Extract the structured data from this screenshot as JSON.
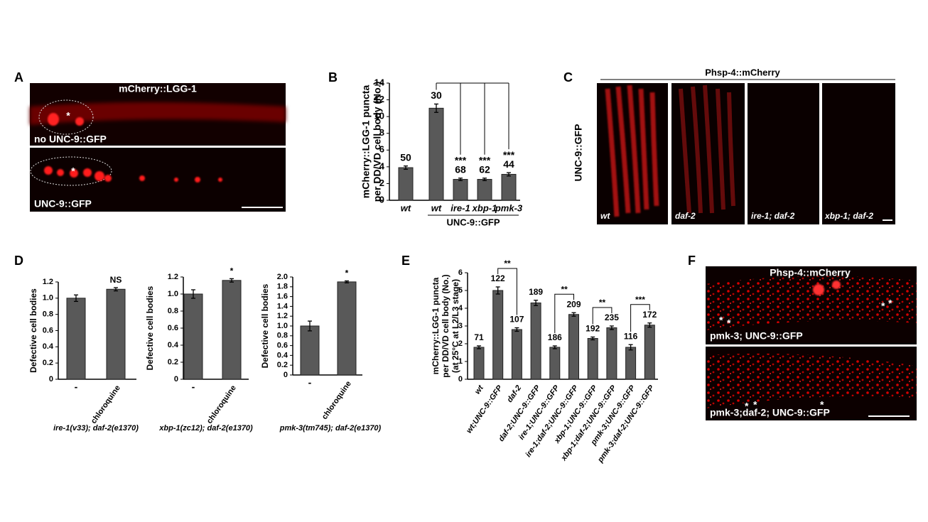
{
  "panels": {
    "A": {
      "letter": "A",
      "title": "mCherry::LGG-1",
      "top_label": "no UNC-9::GFP",
      "bottom_label": "UNC-9::GFP",
      "marker": "*"
    },
    "C": {
      "letter": "C",
      "title": "Phsp-4::mCherry",
      "side_label": "UNC-9::GFP",
      "image_labels": [
        "wt",
        "daf-2",
        "ire-1; daf-2",
        "xbp-1; daf-2"
      ]
    },
    "F": {
      "letter": "F",
      "title": "Phsp-4::mCherry",
      "top_label": "pmk-3; UNC-9::GFP",
      "bottom_label": "pmk-3;daf-2; UNC-9::GFP",
      "marker": "*"
    }
  },
  "chart_data": [
    {
      "type": "bar",
      "panel": "B",
      "y_label": [
        "mCherry::LGG-1 puncta",
        "per DD/VD cell body (No.)"
      ],
      "categories": [
        "wt",
        "wt",
        "ire-1",
        "xbp-1",
        "pmk-3"
      ],
      "values": [
        3.9,
        11,
        2.5,
        2.5,
        3.1
      ],
      "errors": [
        0.2,
        0.5,
        0.15,
        0.15,
        0.2
      ],
      "n_labels": [
        "50",
        "30",
        "68",
        "62",
        "44"
      ],
      "sig_labels": [
        null,
        null,
        "***",
        "***",
        "***"
      ],
      "group_label": "UNC-9::GFP",
      "color": "#595959",
      "ylim": [
        0,
        14
      ],
      "yticks": [
        0,
        2,
        4,
        6,
        8,
        10,
        12,
        14
      ]
    },
    {
      "type": "bar",
      "panel": "D",
      "y_label": [
        "Defective cell bodies"
      ],
      "x_label": "ire-1(v33); daf-2(e1370)",
      "categories": [
        "-",
        "chloroquine"
      ],
      "values": [
        1.0,
        1.11
      ],
      "errors": [
        0.04,
        0.02
      ],
      "sig_labels": [
        null,
        "NS"
      ],
      "color": "#595959",
      "ylim": [
        0,
        1.2
      ],
      "yticks": [
        0,
        0.2,
        0.4,
        0.6,
        0.8,
        {
          "value": 1,
          "label": "1.0"
        },
        1.2
      ]
    },
    {
      "type": "bar",
      "y_label": [
        "Defective cell bodies"
      ],
      "x_label": "xbp-1(zc12); daf-2(e1370)",
      "categories": [
        "-",
        "chloroquine"
      ],
      "values": [
        1.0,
        1.16
      ],
      "errors": [
        0.05,
        0.02
      ],
      "sig_labels": [
        null,
        "*"
      ],
      "color": "#595959",
      "ylim": [
        0,
        1.2
      ],
      "yticks": [
        0,
        0.2,
        0.4,
        0.6,
        0.8,
        {
          "value": 1,
          "label": "1.0"
        },
        1.2
      ]
    },
    {
      "type": "bar",
      "y_label": [
        "Defective cell bodies"
      ],
      "x_label": "pmk-3(tm745); daf-2(e1370)",
      "categories": [
        "-",
        "chloroquine"
      ],
      "values": [
        1.0,
        1.9
      ],
      "errors": [
        0.1,
        0.02
      ],
      "sig_labels": [
        null,
        "*"
      ],
      "color": "#595959",
      "ylim": [
        0,
        2
      ],
      "yticks": [
        0,
        0.2,
        0.4,
        0.6,
        0.8,
        {
          "value": 1,
          "label": "1.0"
        },
        1.2,
        1.4,
        1.6,
        1.8,
        {
          "value": 2,
          "label": "2.0"
        }
      ]
    },
    {
      "type": "bar",
      "panel": "E",
      "y_label": [
        "mCherry::LGG-1 puncta",
        "per DD/VD cell body (No.)",
        "(at 25°C at L2/L3 stage)"
      ],
      "categories": [
        "wt",
        "wt;UNC-9::GFP",
        "daf-2",
        "daf-2;UNC-9::GFP",
        "ire-1;UNC-9::GFP",
        "ire-1;daf-2;UNC-9::GFP",
        "xbp-1;UNC-9::GFP",
        "xbp-1;daf-2;UNC-9::GFP",
        "pmk-3;UNC-9::GFP",
        "pmk-3;daf-2;UNC-9::GFP"
      ],
      "values": [
        1.8,
        5.0,
        2.8,
        4.3,
        1.8,
        3.65,
        2.3,
        2.9,
        1.8,
        3.05
      ],
      "errors": [
        0.08,
        0.2,
        0.1,
        0.15,
        0.08,
        0.1,
        0.08,
        0.1,
        0.15,
        0.12
      ],
      "n_labels": [
        "71",
        "122",
        "107",
        "189",
        "186",
        "209",
        "192",
        "235",
        "116",
        "172"
      ],
      "sig_labels": [
        null,
        null,
        "**",
        null,
        null,
        "**",
        null,
        "**",
        null,
        "***"
      ],
      "color": "#595959",
      "ylim": [
        0,
        6
      ],
      "yticks": [
        0,
        1,
        2,
        3,
        4,
        5,
        6
      ]
    }
  ]
}
